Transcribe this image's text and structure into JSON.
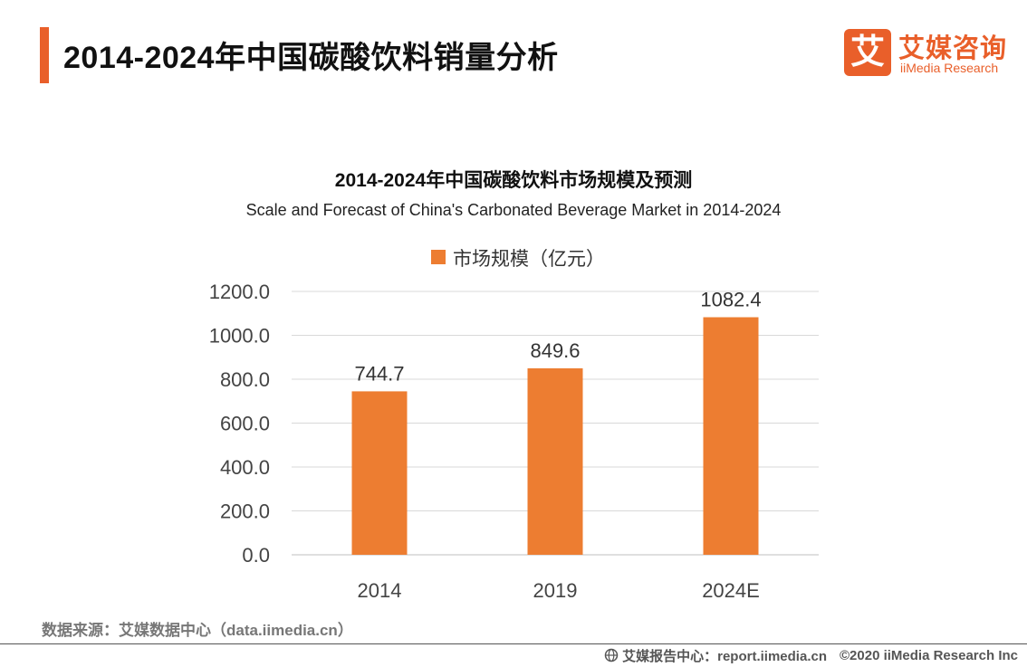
{
  "page": {
    "title": "2014-2024年中国碳酸饮料销量分析"
  },
  "logo": {
    "mark": "艾",
    "name_cn": "艾媒咨询",
    "name_en": "iiMedia Research"
  },
  "chart_data": {
    "type": "bar",
    "title": "2014-2024年中国碳酸饮料市场规模及预测",
    "subtitle": "Scale and Forecast of China's Carbonated Beverage Market in 2014-2024",
    "categories": [
      "2014",
      "2019",
      "2024E"
    ],
    "series": [
      {
        "name": "市场规模（亿元）",
        "values": [
          744.7,
          849.6,
          1082.4
        ]
      }
    ],
    "data_labels": [
      "744.7",
      "849.6",
      "1082.4"
    ],
    "ylim": [
      0,
      1200
    ],
    "yticks": [
      "0.0",
      "200.0",
      "400.0",
      "600.0",
      "800.0",
      "1000.0",
      "1200.0"
    ],
    "grid": true,
    "legend": "top-center",
    "bar_color": "#ed7d31"
  },
  "source": "数据来源：艾媒数据中心（data.iimedia.cn）",
  "footer": {
    "report": "艾媒报告中心：report.iimedia.cn",
    "copyright": "©2020  iiMedia Research  Inc"
  },
  "colors": {
    "accent": "#e95f2a",
    "bar": "#ed7d31",
    "grid": "#d9d9d9"
  }
}
